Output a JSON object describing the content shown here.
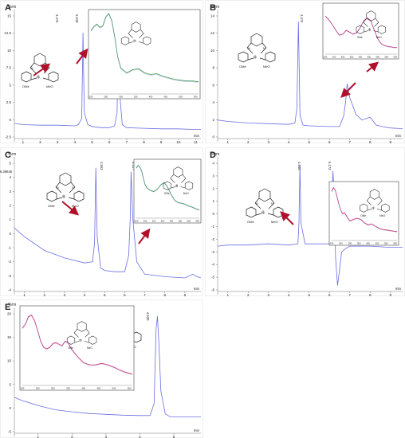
{
  "figure": {
    "panels": [
      {
        "id": "A",
        "label": "A",
        "unit": "%rm",
        "x_axis_unit": "min",
        "y_ticks": [
          "15",
          "12.5",
          "10",
          "7.5",
          "5",
          "2.5",
          "0",
          "-2.5"
        ],
        "x_ticks": [
          "1",
          "2",
          "3",
          "4",
          "5",
          "6",
          "7",
          "8",
          "9",
          "10",
          "11"
        ],
        "peak_labels": [
          "4.476",
          "6.518"
        ],
        "inset_x_ticks": [
          "200",
          "250",
          "300",
          "350",
          "400",
          "450",
          "500",
          "550"
        ]
      },
      {
        "id": "B",
        "label": "B",
        "unit": "%rm",
        "x_axis_unit": "min",
        "y_ticks": [
          "14",
          "12",
          "10",
          "8",
          "6",
          "4",
          "2",
          "0"
        ],
        "x_ticks": [
          "1",
          "2",
          "3",
          "4",
          "5",
          "6",
          "7",
          "8",
          "9"
        ],
        "peak_labels": [
          "4.474",
          "6.869"
        ],
        "inset_x_ticks": [
          "200",
          "250",
          "300",
          "350",
          "400",
          "450",
          "500",
          "550",
          "600"
        ]
      },
      {
        "id": "C",
        "label": "C",
        "unit": "%rm",
        "x_axis_unit": "min",
        "y_ticks": [
          "5",
          "4",
          "3",
          "2",
          "1",
          "0",
          "-1",
          "-2",
          "-3",
          "-4"
        ],
        "x_ticks": [
          "1",
          "2",
          "3",
          "4",
          "5",
          "6",
          "7",
          "8",
          "9"
        ],
        "peak_labels": [
          "4.563",
          "6.317"
        ],
        "inset_x_ticks": [
          "200",
          "250",
          "300",
          "350",
          "400",
          "450",
          "500",
          "550"
        ]
      },
      {
        "id": "D",
        "label": "D",
        "unit": "%rm",
        "x_axis_unit": "min",
        "y_ticks": [
          "4",
          "3",
          "2",
          "1",
          "0",
          "-1",
          "-2",
          "-3",
          "-4",
          "-5",
          "-6"
        ],
        "x_ticks": [
          "1",
          "2",
          "3",
          "4",
          "5",
          "6",
          "7",
          "8",
          "9"
        ],
        "peak_labels": [
          "4.546",
          "6.172",
          "6.39846"
        ],
        "inset_x_ticks": [
          "200",
          "250",
          "300",
          "350",
          "400",
          "450",
          "500",
          "550"
        ]
      },
      {
        "id": "E",
        "label": "E",
        "unit": "%rm",
        "x_axis_unit": "min",
        "y_ticks": [
          "20",
          "15",
          "10",
          "5",
          "0",
          "-5"
        ],
        "x_ticks": [
          "1",
          "2",
          "3",
          "4",
          "5"
        ],
        "peak_labels": [
          "4.520"
        ],
        "inset_x_ticks": [
          "200",
          "250",
          "300",
          "350",
          "400",
          "450",
          "500",
          "550"
        ]
      }
    ],
    "structure_labels": {
      "ome_left": "OMe",
      "meo_right": "MeO",
      "metal": "Ni",
      "n_left": "N",
      "n_right": "N"
    }
  },
  "chart_data": [
    {
      "type": "line",
      "panel": "A",
      "xlabel": "min",
      "ylabel": "%rm",
      "xlim": [
        0.5,
        11.3
      ],
      "ylim": [
        -3.5,
        16
      ],
      "series": [
        {
          "x": [
            0.5,
            1,
            2,
            3,
            4,
            4.2,
            4.4,
            4.476,
            4.55,
            4.75,
            5,
            5.5,
            6,
            6.3,
            6.45,
            6.518,
            6.6,
            6.75,
            7,
            8,
            9,
            10,
            11,
            11.3
          ],
          "y": [
            -1.8,
            -2,
            -2.1,
            -2.1,
            -2.2,
            -2,
            -1,
            13,
            0,
            -2,
            -2.3,
            -2.5,
            -2.5,
            -2.2,
            0,
            15.5,
            3,
            -2,
            -2.5,
            -2.6,
            -2.7,
            -2.7,
            -2.8,
            -2.8
          ]
        }
      ],
      "inset": {
        "xlim": [
          200,
          560
        ],
        "ylim": [
          0,
          1
        ],
        "series": [
          {
            "x": [
              200,
              210,
              220,
              230,
              240,
              250,
              260,
              270,
              280,
              290,
              300,
              320,
              340,
              360,
              380,
              400,
              420,
              440,
              460,
              480,
              500,
              520,
              540,
              560
            ],
            "y": [
              0.78,
              0.83,
              0.86,
              0.82,
              0.84,
              0.95,
              0.99,
              0.9,
              0.7,
              0.45,
              0.32,
              0.26,
              0.3,
              0.31,
              0.26,
              0.24,
              0.25,
              0.22,
              0.2,
              0.18,
              0.17,
              0.16,
              0.16,
              0.15
            ]
          }
        ]
      }
    },
    {
      "type": "line",
      "panel": "B",
      "xlabel": "min",
      "ylabel": "%rm",
      "xlim": [
        0.5,
        9.6
      ],
      "ylim": [
        -1.5,
        15
      ],
      "series": [
        {
          "x": [
            0.5,
            1,
            2,
            3,
            4,
            4.3,
            4.4,
            4.474,
            4.55,
            4.7,
            5,
            6,
            6.5,
            6.7,
            6.8,
            6.869,
            7,
            7.3,
            7.6,
            8,
            8.3,
            8.6,
            9,
            9.6
          ],
          "y": [
            0.4,
            0.2,
            0,
            -0.1,
            -0.2,
            0,
            2,
            14,
            1,
            -0.3,
            -0.4,
            -0.5,
            -0.5,
            1,
            3,
            5.4,
            3.5,
            1.2,
            0.4,
            0.8,
            -0.3,
            -0.5,
            -0.7,
            -0.8
          ]
        }
      ],
      "inset": {
        "xlim": [
          200,
          610
        ],
        "ylim": [
          0,
          1
        ],
        "series": [
          {
            "x": [
              200,
              220,
              240,
              260,
              280,
              300,
              320,
              340,
              360,
              380,
              400,
              420,
              440,
              460,
              480,
              500,
              520,
              540,
              560,
              580,
              600,
              610
            ],
            "y": [
              0.8,
              0.72,
              0.62,
              0.5,
              0.4,
              0.42,
              0.5,
              0.46,
              0.42,
              0.45,
              0.56,
              0.7,
              0.76,
              0.7,
              0.5,
              0.32,
              0.22,
              0.18,
              0.16,
              0.15,
              0.14,
              0.14
            ]
          }
        ]
      }
    },
    {
      "type": "line",
      "panel": "C",
      "xlabel": "min",
      "ylabel": "%rm",
      "xlim": [
        0.5,
        9.8
      ],
      "ylim": [
        -4.5,
        5.5
      ],
      "series": [
        {
          "x": [
            0.5,
            1,
            2,
            3,
            4,
            4.4,
            4.5,
            4.563,
            4.63,
            4.8,
            5,
            5.5,
            6,
            6.2,
            6.28,
            6.317,
            6.4,
            6.6,
            7,
            8,
            9,
            9.4,
            9.6,
            9.8
          ],
          "y": [
            0.2,
            -0.5,
            -1.6,
            -2.2,
            -2.6,
            -2.5,
            -1,
            5,
            -0.5,
            -3,
            -3.2,
            -3.3,
            -3.3,
            -2,
            1,
            4.7,
            1,
            -2.5,
            -3.5,
            -3.7,
            -3.8,
            -3.5,
            -3.7,
            -3.8
          ]
        }
      ],
      "inset": {
        "xlim": [
          200,
          560
        ],
        "ylim": [
          0,
          1
        ],
        "series": [
          {
            "x": [
              200,
              210,
              220,
              230,
              240,
              250,
              260,
              270,
              280,
              300,
              320,
              340,
              360,
              380,
              400,
              420,
              440,
              460,
              480,
              500,
              520,
              540,
              560
            ],
            "y": [
              0.9,
              0.95,
              0.92,
              0.85,
              0.72,
              0.6,
              0.55,
              0.52,
              0.5,
              0.48,
              0.52,
              0.6,
              0.64,
              0.55,
              0.42,
              0.32,
              0.28,
              0.27,
              0.25,
              0.22,
              0.2,
              0.17,
              0.15
            ]
          }
        ]
      }
    },
    {
      "type": "line",
      "panel": "D",
      "xlabel": "min",
      "ylabel": "%rm",
      "xlim": [
        0.5,
        9.6
      ],
      "ylim": [
        -6.5,
        4.3
      ],
      "series": [
        {
          "x": [
            0.5,
            1,
            2,
            3,
            4,
            4.45,
            4.5,
            4.546,
            4.6,
            4.8,
            5,
            5.5,
            6,
            6.1,
            6.172,
            6.25,
            6.3,
            6.4,
            6.5,
            6.6,
            6.8,
            7,
            8,
            9,
            9.6
          ],
          "y": [
            -3,
            -2.9,
            -2.9,
            -2.8,
            -2.9,
            -2.8,
            -1,
            4,
            -1,
            -2.8,
            -2.8,
            -2.8,
            -2.8,
            -1,
            3.5,
            1,
            -4,
            -6.4,
            -5,
            -3.5,
            -3.2,
            -3,
            -3,
            -3.1,
            -3.1
          ]
        }
      ],
      "inset": {
        "xlim": [
          200,
          560
        ],
        "ylim": [
          0,
          1
        ],
        "series": [
          {
            "x": [
              200,
              210,
              220,
              230,
              240,
              250,
              260,
              270,
              280,
              300,
              320,
              340,
              360,
              380,
              400,
              420,
              440,
              460,
              480,
              500,
              520,
              540,
              560
            ],
            "y": [
              0.88,
              0.95,
              0.9,
              0.78,
              0.65,
              0.55,
              0.48,
              0.5,
              0.45,
              0.35,
              0.38,
              0.4,
              0.38,
              0.32,
              0.28,
              0.3,
              0.26,
              0.22,
              0.2,
              0.19,
              0.18,
              0.17,
              0.16
            ]
          }
        ]
      }
    },
    {
      "type": "line",
      "panel": "E",
      "xlabel": "min",
      "ylabel": "%rm",
      "xlim": [
        0.3,
        5.8
      ],
      "ylim": [
        -6,
        22
      ],
      "series": [
        {
          "x": [
            0.3,
            0.5,
            1,
            1.5,
            2,
            2.5,
            3,
            3.5,
            4,
            4.3,
            4.42,
            4.48,
            4.52,
            4.56,
            4.62,
            4.75,
            4.9,
            5.2,
            5.5,
            5.8
          ],
          "y": [
            1.5,
            0.8,
            -0.5,
            -1.5,
            -2,
            -2.4,
            -2.6,
            -2.8,
            -2.9,
            -2.9,
            0,
            18,
            21,
            15,
            3,
            -2.5,
            -3.2,
            -3.2,
            -3.2,
            -3.2
          ]
        }
      ],
      "inset": {
        "xlim": [
          200,
          560
        ],
        "ylim": [
          0,
          1
        ],
        "series": [
          {
            "x": [
              200,
              210,
              220,
              230,
              240,
              250,
              260,
              270,
              280,
              290,
              300,
              310,
              320,
              330,
              340,
              350,
              360,
              380,
              400,
              420,
              440,
              460,
              480,
              500,
              520,
              540,
              560
            ],
            "y": [
              0.75,
              0.8,
              0.9,
              0.92,
              0.85,
              0.72,
              0.58,
              0.5,
              0.48,
              0.5,
              0.55,
              0.56,
              0.54,
              0.52,
              0.58,
              0.56,
              0.48,
              0.38,
              0.3,
              0.27,
              0.27,
              0.29,
              0.27,
              0.24,
              0.2,
              0.17,
              0.15
            ]
          }
        ]
      }
    }
  ]
}
